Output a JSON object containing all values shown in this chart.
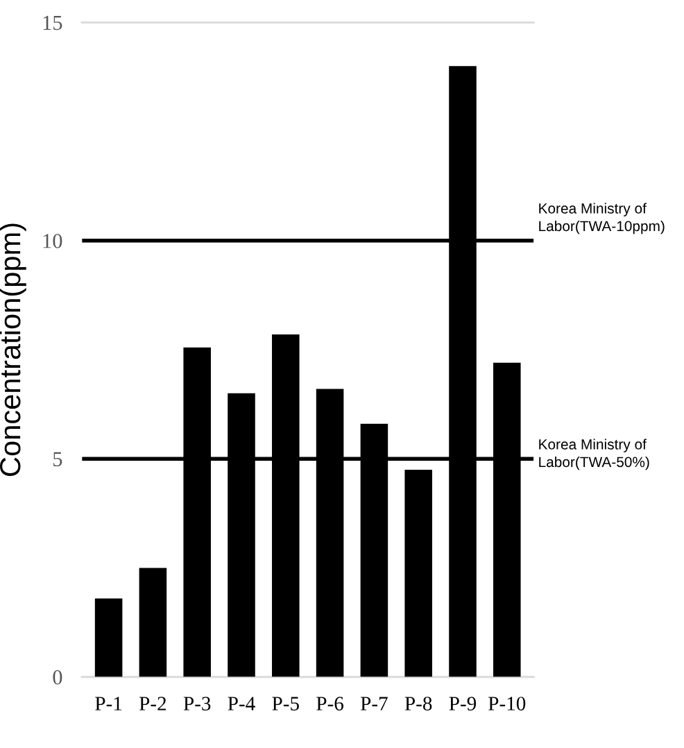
{
  "chart_data": {
    "type": "bar",
    "ylabel": "Concentration(ppm)",
    "categories": [
      "P-1",
      "P-2",
      "P-3",
      "P-4",
      "P-5",
      "P-6",
      "P-7",
      "P-8",
      "P-9",
      "P-10"
    ],
    "values": [
      1.8,
      2.5,
      7.55,
      6.5,
      7.85,
      6.6,
      5.8,
      4.75,
      14.0,
      7.2
    ],
    "color": "#000000",
    "ylim": [
      0,
      15
    ],
    "yticks": [
      0,
      5,
      10,
      15
    ],
    "ref_lines": [
      {
        "axis": "y",
        "value": 10,
        "label": "Korea Ministry of\nLabor(TWA-10ppm)",
        "color": "#000000"
      },
      {
        "axis": "y",
        "value": 5,
        "label": "Korea Ministry of\nLabor(TWA-50%)",
        "color": "#000000"
      }
    ]
  }
}
